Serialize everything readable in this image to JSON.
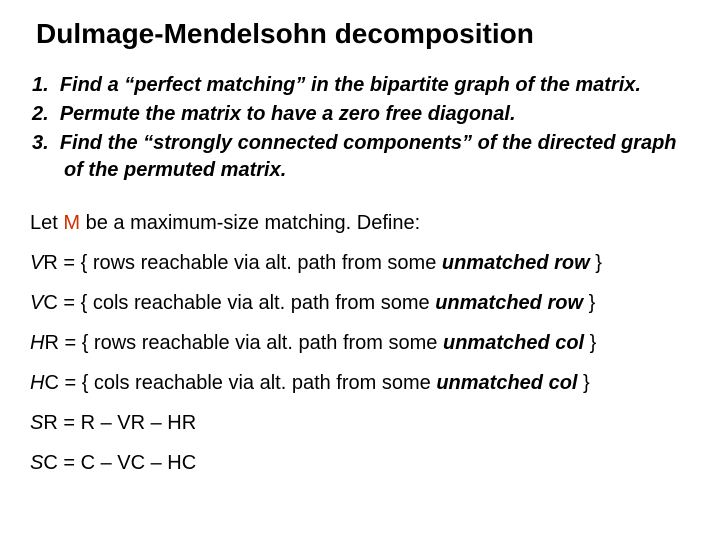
{
  "title": "Dulmage-Mendelsohn decomposition",
  "colors": {
    "text": "#000000",
    "highlight": "#cc3300",
    "background": "#ffffff"
  },
  "typography": {
    "title_fontsize": 28,
    "body_fontsize": 20,
    "title_weight": "bold",
    "steps_weight": "bold",
    "steps_style": "italic"
  },
  "steps": [
    {
      "num": "1.",
      "text": "Find a “perfect matching” in the bipartite graph of the matrix."
    },
    {
      "num": "2.",
      "text": "Permute the matrix to have a zero free diagonal."
    },
    {
      "num": "3.",
      "text": "Find the “strongly connected components” of the directed graph of the permuted matrix."
    }
  ],
  "intro": {
    "pre": "Let ",
    "m": "M",
    "post": " be a maximum-size matching.  Define:"
  },
  "defs": [
    {
      "lhs": "V",
      "sub": "R",
      "mid": " = { rows reachable via alt. path from some ",
      "em": "unmatched row",
      "tail": " }"
    },
    {
      "lhs": "V",
      "sub": "C",
      "mid": " = { cols reachable via alt. path from some ",
      "em": "unmatched row",
      "tail": " }"
    },
    {
      "lhs": "H",
      "sub": "R",
      "mid": " = { rows reachable via alt. path from some ",
      "em": "unmatched col",
      "tail": " }"
    },
    {
      "lhs": "H",
      "sub": "C",
      "mid": " = { cols reachable via alt. path from some ",
      "em": "unmatched col",
      "tail": " }"
    }
  ],
  "resid": [
    {
      "lhs": "S",
      "sub": "R",
      "rhs": " = R – VR – HR"
    },
    {
      "lhs": "S",
      "sub": "C",
      "rhs": " = C – VC – HC"
    }
  ]
}
